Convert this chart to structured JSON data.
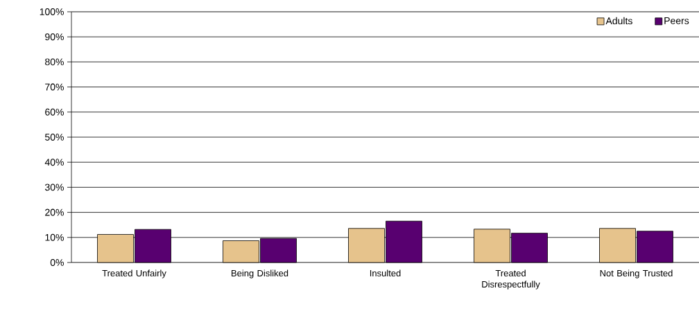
{
  "chart_data": {
    "type": "bar",
    "categories": [
      "Treated Unfairly",
      "Being Disliked",
      "Insulted",
      "Treated Disrespectfully",
      "Not Being Trusted"
    ],
    "series": [
      {
        "name": "Adults",
        "color": "#e6c38c",
        "values": [
          11.2,
          8.7,
          13.6,
          13.3,
          13.6
        ]
      },
      {
        "name": "Peers",
        "color": "#580070",
        "values": [
          13.2,
          9.6,
          16.5,
          11.7,
          12.5
        ]
      }
    ],
    "ylim": [
      0,
      100
    ],
    "yticks": [
      {
        "value": 0,
        "label": "0%"
      },
      {
        "value": 10,
        "label": "10%"
      },
      {
        "value": 20,
        "label": "20%"
      },
      {
        "value": 30,
        "label": "30%"
      },
      {
        "value": 40,
        "label": "40%"
      },
      {
        "value": 50,
        "label": "50%"
      },
      {
        "value": 60,
        "label": "60%"
      },
      {
        "value": 70,
        "label": "70%"
      },
      {
        "value": 80,
        "label": "80%"
      },
      {
        "value": 90,
        "label": "90%"
      },
      {
        "value": 100,
        "label": "100%"
      }
    ],
    "grid": "y",
    "legend": "top right"
  }
}
